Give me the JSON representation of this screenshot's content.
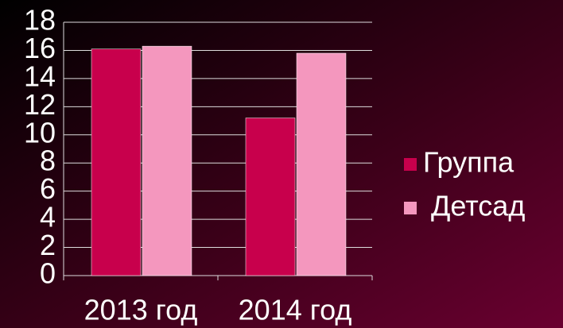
{
  "chart_data": {
    "type": "bar",
    "categories": [
      "2013 год",
      "2014 год"
    ],
    "series": [
      {
        "name": "Группа",
        "color": "#c8004c",
        "values": [
          16.1,
          11.2
        ]
      },
      {
        "name": "Детсад",
        "color": "#f497be",
        "values": [
          16.3,
          15.8
        ]
      }
    ],
    "ylim": [
      0,
      18
    ],
    "yticks": [
      0,
      2,
      4,
      6,
      8,
      10,
      12,
      14,
      16,
      18
    ],
    "grid": true,
    "legend": "right"
  }
}
